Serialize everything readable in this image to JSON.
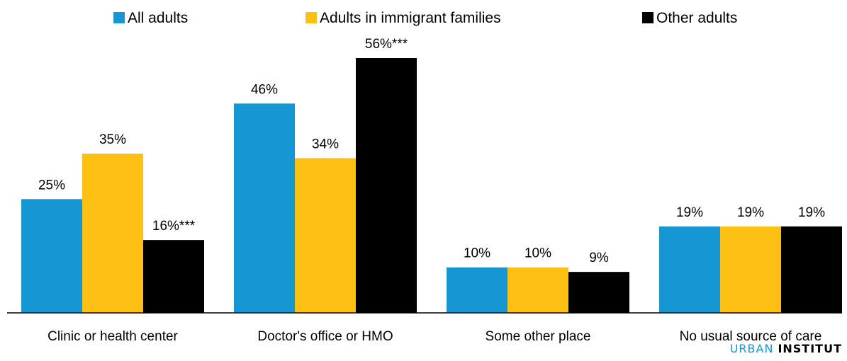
{
  "chart_data": {
    "type": "bar",
    "categories": [
      "Clinic or health center",
      "Doctor's office or HMO",
      "Some other place",
      "No usual source of care"
    ],
    "series": [
      {
        "name": "All adults",
        "color": "#1696d2",
        "values": [
          25,
          46,
          10,
          19
        ],
        "labels": [
          "25%",
          "46%",
          "10%",
          "19%"
        ]
      },
      {
        "name": "Adults in immigrant families",
        "color": "#fdbf11",
        "values": [
          35,
          34,
          10,
          19
        ],
        "labels": [
          "35%",
          "34%",
          "10%",
          "19%"
        ]
      },
      {
        "name": "Other adults",
        "color": "#000000",
        "values": [
          16,
          56,
          9,
          19
        ],
        "labels": [
          "16%***",
          "56%***",
          "9%",
          "19%"
        ]
      }
    ],
    "ylim": [
      0,
      60
    ],
    "grid": false,
    "legend_position": "top"
  },
  "branding": {
    "urban": "URBAN",
    "institute": "INSTITUT",
    "urban_color": "#1696d2"
  }
}
